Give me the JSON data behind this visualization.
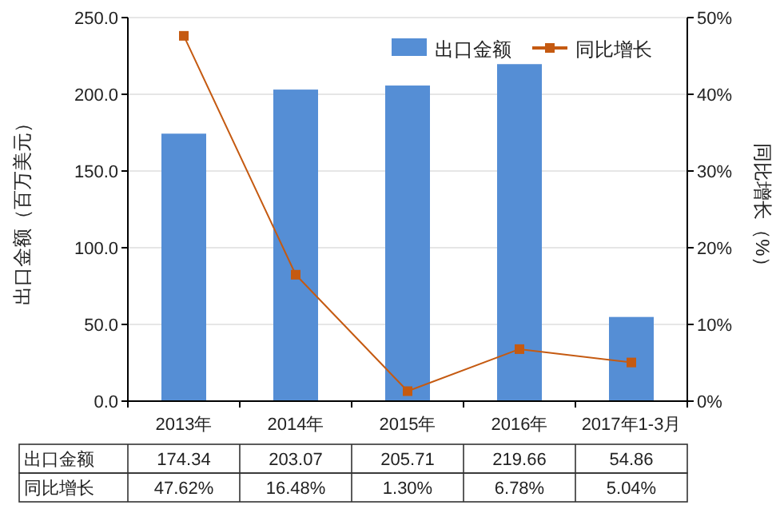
{
  "chart_data": {
    "type": "bar",
    "categories": [
      "2013年",
      "2014年",
      "2015年",
      "2016年",
      "2017年1-3月"
    ],
    "ylabel": "出口金额（百万美元）",
    "y2label": "同比增长（%）",
    "series": [
      {
        "name": "出口金额",
        "color": "#558ed5",
        "values": [
          174.34,
          203.07,
          205.71,
          219.66,
          54.86
        ],
        "value_labels": [
          "174.34",
          "203.07",
          "205.71",
          "219.66",
          "54.86"
        ]
      },
      {
        "name": "同比增长",
        "type": "line",
        "axis": "y2",
        "color": "#c55a11",
        "marker": "square",
        "values": [
          47.62,
          16.48,
          1.3,
          6.78,
          5.04
        ],
        "value_labels": [
          "47.62%",
          "16.48%",
          "1.30%",
          "6.78%",
          "5.04%"
        ]
      }
    ],
    "ylim": [
      0,
      250
    ],
    "yticks": [
      {
        "value": 0,
        "label": "0.0"
      },
      {
        "value": 50,
        "label": "50.0"
      },
      {
        "value": 100,
        "label": "100.0"
      },
      {
        "value": 150,
        "label": "150.0"
      },
      {
        "value": 200,
        "label": "200.0"
      },
      {
        "value": 250,
        "label": "250.0"
      }
    ],
    "y2lim": [
      0,
      50
    ],
    "y2ticks": [
      {
        "value": 0,
        "label": "0%"
      },
      {
        "value": 10,
        "label": "10%"
      },
      {
        "value": 20,
        "label": "20%"
      },
      {
        "value": 30,
        "label": "30%"
      },
      {
        "value": 40,
        "label": "40%"
      },
      {
        "value": 50,
        "label": "50%"
      }
    ],
    "grid": "y",
    "legend": "top right"
  }
}
